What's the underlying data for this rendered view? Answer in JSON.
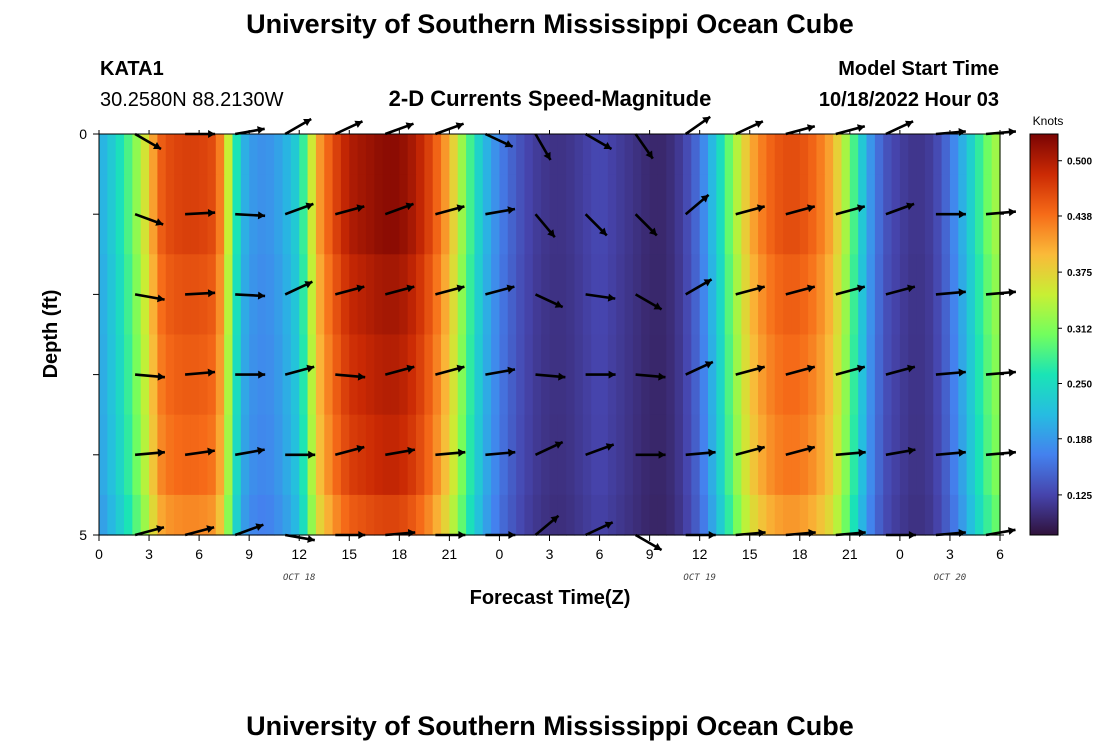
{
  "page_title": "University of Southern Mississippi Ocean Cube",
  "station": {
    "id": "KATA1",
    "coords": "30.2580N  88.2130W"
  },
  "plot_subtitle": "2-D Currents Speed-Magnitude",
  "model_start": {
    "label": "Model Start Time",
    "value": "10/18/2022 Hour 03"
  },
  "colorbar": {
    "unit": "Knots",
    "ticks": [
      "0.500",
      "0.438",
      "0.375",
      "0.312",
      "0.250",
      "0.188",
      "0.125"
    ],
    "tick_values": [
      0.5,
      0.438,
      0.375,
      0.312,
      0.25,
      0.188,
      0.125
    ],
    "range": [
      0.08,
      0.53
    ]
  },
  "chart_data": {
    "type": "heatmap",
    "title": "2-D Currents Speed-Magnitude",
    "xlabel": "Forecast Time(Z)",
    "ylabel": "Depth (ft)",
    "x_tick_labels": [
      "0",
      "3",
      "6",
      "9",
      "12",
      "15",
      "18",
      "21",
      "0",
      "3",
      "6",
      "9",
      "12",
      "15",
      "18",
      "21",
      "0",
      "3",
      "6"
    ],
    "x_tick_hours": [
      0,
      3,
      6,
      9,
      12,
      15,
      18,
      21,
      24,
      27,
      30,
      33,
      36,
      39,
      42,
      45,
      48,
      51,
      54
    ],
    "xlim": [
      0,
      54
    ],
    "y_tick_labels": [
      "0",
      "5"
    ],
    "ylim": [
      0,
      5
    ],
    "date_labels": [
      {
        "text": "OCT 18",
        "hour": 12
      },
      {
        "text": "OCT 19",
        "hour": 36
      },
      {
        "text": "OCT 20",
        "hour": 51
      }
    ],
    "speed_profile_hours": [
      0,
      1,
      2,
      3,
      3.5,
      4,
      5,
      6,
      7,
      7.5,
      8,
      8.5,
      9,
      10,
      11,
      12,
      12.5,
      13,
      14,
      15,
      16,
      17,
      18,
      19,
      20,
      21,
      22,
      23,
      24,
      25,
      26,
      27,
      28,
      29,
      30,
      31,
      32,
      33,
      34,
      35,
      36,
      37,
      38,
      39,
      40,
      41,
      42,
      43,
      44,
      45,
      46,
      47,
      48,
      49,
      50,
      51,
      52,
      53,
      54
    ],
    "speed_profile_knots": [
      0.2,
      0.24,
      0.3,
      0.38,
      0.44,
      0.46,
      0.47,
      0.47,
      0.46,
      0.4,
      0.3,
      0.22,
      0.19,
      0.18,
      0.2,
      0.24,
      0.31,
      0.4,
      0.46,
      0.5,
      0.51,
      0.52,
      0.52,
      0.5,
      0.46,
      0.4,
      0.3,
      0.22,
      0.17,
      0.14,
      0.12,
      0.11,
      0.11,
      0.12,
      0.13,
      0.12,
      0.11,
      0.1,
      0.1,
      0.12,
      0.16,
      0.23,
      0.32,
      0.4,
      0.44,
      0.46,
      0.46,
      0.44,
      0.4,
      0.31,
      0.2,
      0.14,
      0.12,
      0.11,
      0.12,
      0.16,
      0.22,
      0.29,
      0.34
    ],
    "depth_rows_ft": [
      0.25,
      1.25,
      2.25,
      3.25,
      4.25,
      4.75
    ],
    "depth_row_factor": [
      1.0,
      1.0,
      0.97,
      0.95,
      0.93,
      0.88
    ],
    "vectors": [
      {
        "hour": 3,
        "depth": 0,
        "angle": -30
      },
      {
        "hour": 6,
        "depth": 0,
        "angle": 0
      },
      {
        "hour": 9,
        "depth": 0,
        "angle": 10
      },
      {
        "hour": 12,
        "depth": 0,
        "angle": 30
      },
      {
        "hour": 15,
        "depth": 0,
        "angle": 25
      },
      {
        "hour": 18,
        "depth": 0,
        "angle": 20
      },
      {
        "hour": 21,
        "depth": 0,
        "angle": 20
      },
      {
        "hour": 24,
        "depth": 0,
        "angle": -25
      },
      {
        "hour": 27,
        "depth": 0,
        "angle": -60
      },
      {
        "hour": 30,
        "depth": 0,
        "angle": -30
      },
      {
        "hour": 33,
        "depth": 0,
        "angle": -55
      },
      {
        "hour": 36,
        "depth": 0,
        "angle": 35
      },
      {
        "hour": 39,
        "depth": 0,
        "angle": 25
      },
      {
        "hour": 42,
        "depth": 0,
        "angle": 15
      },
      {
        "hour": 45,
        "depth": 0,
        "angle": 15
      },
      {
        "hour": 48,
        "depth": 0,
        "angle": 25
      },
      {
        "hour": 51,
        "depth": 0,
        "angle": 5
      },
      {
        "hour": 54,
        "depth": 0,
        "angle": 5
      },
      {
        "hour": 3,
        "depth": 1,
        "angle": -20
      },
      {
        "hour": 6,
        "depth": 1,
        "angle": 3
      },
      {
        "hour": 9,
        "depth": 1,
        "angle": -3
      },
      {
        "hour": 12,
        "depth": 1,
        "angle": 20
      },
      {
        "hour": 15,
        "depth": 1,
        "angle": 15
      },
      {
        "hour": 18,
        "depth": 1,
        "angle": 20
      },
      {
        "hour": 21,
        "depth": 1,
        "angle": 15
      },
      {
        "hour": 24,
        "depth": 1,
        "angle": 10
      },
      {
        "hour": 27,
        "depth": 1,
        "angle": -50
      },
      {
        "hour": 30,
        "depth": 1,
        "angle": -45
      },
      {
        "hour": 33,
        "depth": 1,
        "angle": -45
      },
      {
        "hour": 36,
        "depth": 1,
        "angle": 40
      },
      {
        "hour": 39,
        "depth": 1,
        "angle": 15
      },
      {
        "hour": 42,
        "depth": 1,
        "angle": 15
      },
      {
        "hour": 45,
        "depth": 1,
        "angle": 15
      },
      {
        "hour": 48,
        "depth": 1,
        "angle": 20
      },
      {
        "hour": 51,
        "depth": 1,
        "angle": 0
      },
      {
        "hour": 54,
        "depth": 1,
        "angle": 5
      },
      {
        "hour": 3,
        "depth": 2,
        "angle": -10
      },
      {
        "hour": 6,
        "depth": 2,
        "angle": 3
      },
      {
        "hour": 9,
        "depth": 2,
        "angle": -3
      },
      {
        "hour": 12,
        "depth": 2,
        "angle": 25
      },
      {
        "hour": 15,
        "depth": 2,
        "angle": 15
      },
      {
        "hour": 18,
        "depth": 2,
        "angle": 15
      },
      {
        "hour": 21,
        "depth": 2,
        "angle": 15
      },
      {
        "hour": 24,
        "depth": 2,
        "angle": 15
      },
      {
        "hour": 27,
        "depth": 2,
        "angle": -25
      },
      {
        "hour": 30,
        "depth": 2,
        "angle": -8
      },
      {
        "hour": 33,
        "depth": 2,
        "angle": -30
      },
      {
        "hour": 36,
        "depth": 2,
        "angle": 30
      },
      {
        "hour": 39,
        "depth": 2,
        "angle": 15
      },
      {
        "hour": 42,
        "depth": 2,
        "angle": 15
      },
      {
        "hour": 45,
        "depth": 2,
        "angle": 15
      },
      {
        "hour": 48,
        "depth": 2,
        "angle": 15
      },
      {
        "hour": 51,
        "depth": 2,
        "angle": 5
      },
      {
        "hour": 54,
        "depth": 2,
        "angle": 5
      },
      {
        "hour": 3,
        "depth": 3,
        "angle": -5
      },
      {
        "hour": 6,
        "depth": 3,
        "angle": 5
      },
      {
        "hour": 9,
        "depth": 3,
        "angle": 0
      },
      {
        "hour": 12,
        "depth": 3,
        "angle": 15
      },
      {
        "hour": 15,
        "depth": 3,
        "angle": -5
      },
      {
        "hour": 18,
        "depth": 3,
        "angle": 15
      },
      {
        "hour": 21,
        "depth": 3,
        "angle": 15
      },
      {
        "hour": 24,
        "depth": 3,
        "angle": 10
      },
      {
        "hour": 27,
        "depth": 3,
        "angle": -5
      },
      {
        "hour": 30,
        "depth": 3,
        "angle": 0
      },
      {
        "hour": 33,
        "depth": 3,
        "angle": -5
      },
      {
        "hour": 36,
        "depth": 3,
        "angle": 25
      },
      {
        "hour": 39,
        "depth": 3,
        "angle": 15
      },
      {
        "hour": 42,
        "depth": 3,
        "angle": 15
      },
      {
        "hour": 45,
        "depth": 3,
        "angle": 15
      },
      {
        "hour": 48,
        "depth": 3,
        "angle": 15
      },
      {
        "hour": 51,
        "depth": 3,
        "angle": 5
      },
      {
        "hour": 54,
        "depth": 3,
        "angle": 5
      },
      {
        "hour": 3,
        "depth": 4,
        "angle": 5
      },
      {
        "hour": 6,
        "depth": 4,
        "angle": 8
      },
      {
        "hour": 9,
        "depth": 4,
        "angle": 10
      },
      {
        "hour": 12,
        "depth": 4,
        "angle": 0
      },
      {
        "hour": 15,
        "depth": 4,
        "angle": 15
      },
      {
        "hour": 18,
        "depth": 4,
        "angle": 10
      },
      {
        "hour": 21,
        "depth": 4,
        "angle": 5
      },
      {
        "hour": 24,
        "depth": 4,
        "angle": 5
      },
      {
        "hour": 27,
        "depth": 4,
        "angle": 25
      },
      {
        "hour": 30,
        "depth": 4,
        "angle": 20
      },
      {
        "hour": 33,
        "depth": 4,
        "angle": 0
      },
      {
        "hour": 36,
        "depth": 4,
        "angle": 5
      },
      {
        "hour": 39,
        "depth": 4,
        "angle": 15
      },
      {
        "hour": 42,
        "depth": 4,
        "angle": 15
      },
      {
        "hour": 45,
        "depth": 4,
        "angle": 5
      },
      {
        "hour": 48,
        "depth": 4,
        "angle": 10
      },
      {
        "hour": 51,
        "depth": 4,
        "angle": 5
      },
      {
        "hour": 54,
        "depth": 4,
        "angle": 5
      },
      {
        "hour": 3,
        "depth": 5,
        "angle": 15
      },
      {
        "hour": 6,
        "depth": 5,
        "angle": 15
      },
      {
        "hour": 9,
        "depth": 5,
        "angle": 20
      },
      {
        "hour": 12,
        "depth": 5,
        "angle": -10
      },
      {
        "hour": 15,
        "depth": 5,
        "angle": 0
      },
      {
        "hour": 18,
        "depth": 5,
        "angle": 5
      },
      {
        "hour": 21,
        "depth": 5,
        "angle": 0
      },
      {
        "hour": 24,
        "depth": 5,
        "angle": 0
      },
      {
        "hour": 27,
        "depth": 5,
        "angle": 40
      },
      {
        "hour": 30,
        "depth": 5,
        "angle": 25
      },
      {
        "hour": 33,
        "depth": 5,
        "angle": -30
      },
      {
        "hour": 36,
        "depth": 5,
        "angle": 0
      },
      {
        "hour": 39,
        "depth": 5,
        "angle": 5
      },
      {
        "hour": 42,
        "depth": 5,
        "angle": 5
      },
      {
        "hour": 45,
        "depth": 5,
        "angle": 5
      },
      {
        "hour": 48,
        "depth": 5,
        "angle": 0
      },
      {
        "hour": 51,
        "depth": 5,
        "angle": 5
      },
      {
        "hour": 54,
        "depth": 5,
        "angle": 10
      }
    ]
  }
}
